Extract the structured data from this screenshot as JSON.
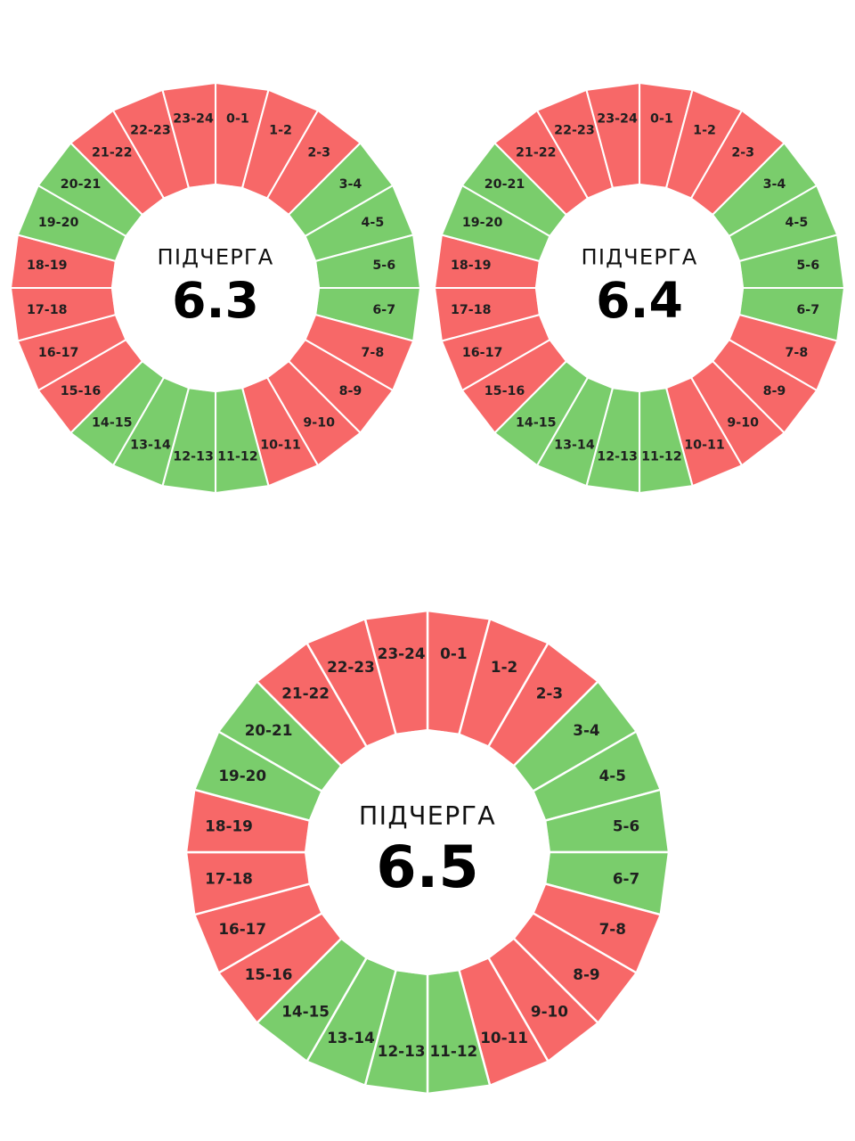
{
  "colors": {
    "power_off": "#f76868",
    "power_on": "#7acd6c",
    "divider": "#ffffff",
    "label_text": "#1f1f1f",
    "center_text": "#000000"
  },
  "slot_labels": [
    "0-1",
    "1-2",
    "2-3",
    "3-4",
    "4-5",
    "5-6",
    "6-7",
    "7-8",
    "8-9",
    "9-10",
    "10-11",
    "11-12",
    "12-13",
    "13-14",
    "14-15",
    "15-16",
    "16-17",
    "17-18",
    "18-19",
    "19-20",
    "20-21",
    "21-22",
    "22-23",
    "23-24"
  ],
  "schedules": [
    {
      "caption": "ПІДЧЕРГА",
      "number": "6.3",
      "states": [
        "off",
        "off",
        "off",
        "on",
        "on",
        "on",
        "on",
        "off",
        "off",
        "off",
        "off",
        "on",
        "on",
        "on",
        "on",
        "off",
        "off",
        "off",
        "off",
        "on",
        "on",
        "off",
        "off",
        "off"
      ]
    },
    {
      "caption": "ПІДЧЕРГА",
      "number": "6.4",
      "states": [
        "off",
        "off",
        "off",
        "on",
        "on",
        "on",
        "on",
        "off",
        "off",
        "off",
        "off",
        "on",
        "on",
        "on",
        "on",
        "off",
        "off",
        "off",
        "off",
        "on",
        "on",
        "off",
        "off",
        "off"
      ]
    },
    {
      "caption": "ПІДЧЕРГА",
      "number": "6.5",
      "states": [
        "off",
        "off",
        "off",
        "on",
        "on",
        "on",
        "on",
        "off",
        "off",
        "off",
        "off",
        "on",
        "on",
        "on",
        "on",
        "off",
        "off",
        "off",
        "off",
        "on",
        "on",
        "off",
        "off",
        "off"
      ]
    }
  ]
}
